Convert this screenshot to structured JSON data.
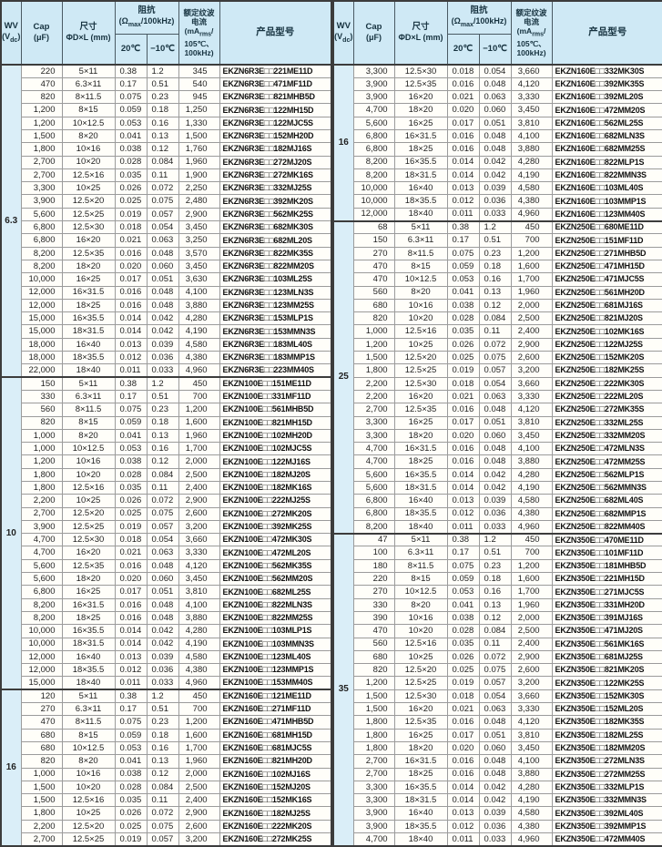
{
  "header": {
    "wv_title": "WV",
    "wv_unit_pre": "(V",
    "wv_unit_sub": "dc",
    "wv_unit_post": ")",
    "cap_title": "Cap",
    "cap_unit": "(μF)",
    "size_title": "尺寸",
    "size_unit": "ΦD×L (mm)",
    "impedance_title": "阻抗",
    "impedance_unit_pre": "(Ω",
    "impedance_unit_sub": "max",
    "impedance_unit_post": "/100kHz)",
    "temp_20": "20℃",
    "temp_minus10": "−10℃",
    "ripple_line1": "额定纹波",
    "ripple_line2": "电流",
    "ripple_line3_pre": "(mA",
    "ripple_line3_sub": "rms",
    "ripple_line3_post": "/",
    "ripple_line4": "105℃、",
    "ripple_line5": "100kHz)",
    "model_title": "产品型号"
  },
  "left_sections": [
    {
      "wv": "6.3",
      "rows": [
        [
          "220",
          "5×11",
          "0.38",
          "1.2",
          "345",
          "EKZN6R3E□□221ME11D"
        ],
        [
          "470",
          "6.3×11",
          "0.17",
          "0.51",
          "540",
          "EKZN6R3E□□471MF11D"
        ],
        [
          "820",
          "8×11.5",
          "0.075",
          "0.23",
          "945",
          "EKZN6R3E□□821MHB5D"
        ],
        [
          "1,200",
          "8×15",
          "0.059",
          "0.18",
          "1,250",
          "EKZN6R3E□□122MH15D"
        ],
        [
          "1,200",
          "10×12.5",
          "0.053",
          "0.16",
          "1,330",
          "EKZN6R3E□□122MJC5S"
        ],
        [
          "1,500",
          "8×20",
          "0.041",
          "0.13",
          "1,500",
          "EKZN6R3E□□152MH20D"
        ],
        [
          "1,800",
          "10×16",
          "0.038",
          "0.12",
          "1,760",
          "EKZN6R3E□□182MJ16S"
        ],
        [
          "2,700",
          "10×20",
          "0.028",
          "0.084",
          "1,960",
          "EKZN6R3E□□272MJ20S"
        ],
        [
          "2,700",
          "12.5×16",
          "0.035",
          "0.11",
          "1,900",
          "EKZN6R3E□□272MK16S"
        ],
        [
          "3,300",
          "10×25",
          "0.026",
          "0.072",
          "2,250",
          "EKZN6R3E□□332MJ25S"
        ],
        [
          "3,900",
          "12.5×20",
          "0.025",
          "0.075",
          "2,480",
          "EKZN6R3E□□392MK20S"
        ],
        [
          "5,600",
          "12.5×25",
          "0.019",
          "0.057",
          "2,900",
          "EKZN6R3E□□562MK25S"
        ],
        [
          "6,800",
          "12.5×30",
          "0.018",
          "0.054",
          "3,450",
          "EKZN6R3E□□682MK30S"
        ],
        [
          "6,800",
          "16×20",
          "0.021",
          "0.063",
          "3,250",
          "EKZN6R3E□□682ML20S"
        ],
        [
          "8,200",
          "12.5×35",
          "0.016",
          "0.048",
          "3,570",
          "EKZN6R3E□□822MK35S"
        ],
        [
          "8,200",
          "18×20",
          "0.020",
          "0.060",
          "3,450",
          "EKZN6R3E□□822MM20S"
        ],
        [
          "10,000",
          "16×25",
          "0.017",
          "0.051",
          "3,630",
          "EKZN6R3E□□103ML25S"
        ],
        [
          "12,000",
          "16×31.5",
          "0.016",
          "0.048",
          "4,100",
          "EKZN6R3E□□123MLN3S"
        ],
        [
          "12,000",
          "18×25",
          "0.016",
          "0.048",
          "3,880",
          "EKZN6R3E□□123MM25S"
        ],
        [
          "15,000",
          "16×35.5",
          "0.014",
          "0.042",
          "4,280",
          "EKZN6R3E□□153MLP1S"
        ],
        [
          "15,000",
          "18×31.5",
          "0.014",
          "0.042",
          "4,190",
          "EKZN6R3E□□153MMN3S"
        ],
        [
          "18,000",
          "16×40",
          "0.013",
          "0.039",
          "4,580",
          "EKZN6R3E□□183ML40S"
        ],
        [
          "18,000",
          "18×35.5",
          "0.012",
          "0.036",
          "4,380",
          "EKZN6R3E□□183MMP1S"
        ],
        [
          "22,000",
          "18×40",
          "0.011",
          "0.033",
          "4,960",
          "EKZN6R3E□□223MM40S"
        ]
      ]
    },
    {
      "wv": "10",
      "rows": [
        [
          "150",
          "5×11",
          "0.38",
          "1.2",
          "450",
          "EKZN100E□□151ME11D"
        ],
        [
          "330",
          "6.3×11",
          "0.17",
          "0.51",
          "700",
          "EKZN100E□□331MF11D"
        ],
        [
          "560",
          "8×11.5",
          "0.075",
          "0.23",
          "1,200",
          "EKZN100E□□561MHB5D"
        ],
        [
          "820",
          "8×15",
          "0.059",
          "0.18",
          "1,600",
          "EKZN100E□□821MH15D"
        ],
        [
          "1,000",
          "8×20",
          "0.041",
          "0.13",
          "1,960",
          "EKZN100E□□102MH20D"
        ],
        [
          "1,000",
          "10×12.5",
          "0.053",
          "0.16",
          "1,700",
          "EKZN100E□□102MJC5S"
        ],
        [
          "1,200",
          "10×16",
          "0.038",
          "0.12",
          "2,000",
          "EKZN100E□□122MJ16S"
        ],
        [
          "1,800",
          "10×20",
          "0.028",
          "0.084",
          "2,500",
          "EKZN100E□□182MJ20S"
        ],
        [
          "1,800",
          "12.5×16",
          "0.035",
          "0.11",
          "2,400",
          "EKZN100E□□182MK16S"
        ],
        [
          "2,200",
          "10×25",
          "0.026",
          "0.072",
          "2,900",
          "EKZN100E□□222MJ25S"
        ],
        [
          "2,700",
          "12.5×20",
          "0.025",
          "0.075",
          "2,600",
          "EKZN100E□□272MK20S"
        ],
        [
          "3,900",
          "12.5×25",
          "0.019",
          "0.057",
          "3,200",
          "EKZN100E□□392MK25S"
        ],
        [
          "4,700",
          "12.5×30",
          "0.018",
          "0.054",
          "3,660",
          "EKZN100E□□472MK30S"
        ],
        [
          "4,700",
          "16×20",
          "0.021",
          "0.063",
          "3,330",
          "EKZN100E□□472ML20S"
        ],
        [
          "5,600",
          "12.5×35",
          "0.016",
          "0.048",
          "4,120",
          "EKZN100E□□562MK35S"
        ],
        [
          "5,600",
          "18×20",
          "0.020",
          "0.060",
          "3,450",
          "EKZN100E□□562MM20S"
        ],
        [
          "6,800",
          "16×25",
          "0.017",
          "0.051",
          "3,810",
          "EKZN100E□□682ML25S"
        ],
        [
          "8,200",
          "16×31.5",
          "0.016",
          "0.048",
          "4,100",
          "EKZN100E□□822MLN3S"
        ],
        [
          "8,200",
          "18×25",
          "0.016",
          "0.048",
          "3,880",
          "EKZN100E□□822MM25S"
        ],
        [
          "10,000",
          "16×35.5",
          "0.014",
          "0.042",
          "4,280",
          "EKZN100E□□103MLP1S"
        ],
        [
          "10,000",
          "18×31.5",
          "0.014",
          "0.042",
          "4,190",
          "EKZN100E□□103MMN3S"
        ],
        [
          "12,000",
          "16×40",
          "0.013",
          "0.039",
          "4,580",
          "EKZN100E□□123ML40S"
        ],
        [
          "12,000",
          "18×35.5",
          "0.012",
          "0.036",
          "4,380",
          "EKZN100E□□123MMP1S"
        ],
        [
          "15,000",
          "18×40",
          "0.011",
          "0.033",
          "4,960",
          "EKZN100E□□153MM40S"
        ]
      ]
    },
    {
      "wv": "16",
      "rows": [
        [
          "120",
          "5×11",
          "0.38",
          "1.2",
          "450",
          "EKZN160E□□121ME11D"
        ],
        [
          "270",
          "6.3×11",
          "0.17",
          "0.51",
          "700",
          "EKZN160E□□271MF11D"
        ],
        [
          "470",
          "8×11.5",
          "0.075",
          "0.23",
          "1,200",
          "EKZN160E□□471MHB5D"
        ],
        [
          "680",
          "8×15",
          "0.059",
          "0.18",
          "1,600",
          "EKZN160E□□681MH15D"
        ],
        [
          "680",
          "10×12.5",
          "0.053",
          "0.16",
          "1,700",
          "EKZN160E□□681MJC5S"
        ],
        [
          "820",
          "8×20",
          "0.041",
          "0.13",
          "1,960",
          "EKZN160E□□821MH20D"
        ],
        [
          "1,000",
          "10×16",
          "0.038",
          "0.12",
          "2,000",
          "EKZN160E□□102MJ16S"
        ],
        [
          "1,500",
          "10×20",
          "0.028",
          "0.084",
          "2,500",
          "EKZN160E□□152MJ20S"
        ],
        [
          "1,500",
          "12.5×16",
          "0.035",
          "0.11",
          "2,400",
          "EKZN160E□□152MK16S"
        ],
        [
          "1,800",
          "10×25",
          "0.026",
          "0.072",
          "2,900",
          "EKZN160E□□182MJ25S"
        ],
        [
          "2,200",
          "12.5×20",
          "0.025",
          "0.075",
          "2,600",
          "EKZN160E□□222MK20S"
        ],
        [
          "2,700",
          "12.5×25",
          "0.019",
          "0.057",
          "3,200",
          "EKZN160E□□272MK25S"
        ]
      ]
    }
  ],
  "right_sections": [
    {
      "wv": "16",
      "rows": [
        [
          "3,300",
          "12.5×30",
          "0.018",
          "0.054",
          "3,660",
          "EKZN160E□□332MK30S"
        ],
        [
          "3,900",
          "12.5×35",
          "0.016",
          "0.048",
          "4,120",
          "EKZN160E□□392MK35S"
        ],
        [
          "3,900",
          "16×20",
          "0.021",
          "0.063",
          "3,330",
          "EKZN160E□□392ML20S"
        ],
        [
          "4,700",
          "18×20",
          "0.020",
          "0.060",
          "3,450",
          "EKZN160E□□472MM20S"
        ],
        [
          "5,600",
          "16×25",
          "0.017",
          "0.051",
          "3,810",
          "EKZN160E□□562ML25S"
        ],
        [
          "6,800",
          "16×31.5",
          "0.016",
          "0.048",
          "4,100",
          "EKZN160E□□682MLN3S"
        ],
        [
          "6,800",
          "18×25",
          "0.016",
          "0.048",
          "3,880",
          "EKZN160E□□682MM25S"
        ],
        [
          "8,200",
          "16×35.5",
          "0.014",
          "0.042",
          "4,280",
          "EKZN160E□□822MLP1S"
        ],
        [
          "8,200",
          "18×31.5",
          "0.014",
          "0.042",
          "4,190",
          "EKZN160E□□822MMN3S"
        ],
        [
          "10,000",
          "16×40",
          "0.013",
          "0.039",
          "4,580",
          "EKZN160E□□103ML40S"
        ],
        [
          "10,000",
          "18×35.5",
          "0.012",
          "0.036",
          "4,380",
          "EKZN160E□□103MMP1S"
        ],
        [
          "12,000",
          "18×40",
          "0.011",
          "0.033",
          "4,960",
          "EKZN160E□□123MM40S"
        ]
      ]
    },
    {
      "wv": "25",
      "rows": [
        [
          "68",
          "5×11",
          "0.38",
          "1.2",
          "450",
          "EKZN250E□□680ME11D"
        ],
        [
          "150",
          "6.3×11",
          "0.17",
          "0.51",
          "700",
          "EKZN250E□□151MF11D"
        ],
        [
          "270",
          "8×11.5",
          "0.075",
          "0.23",
          "1,200",
          "EKZN250E□□271MHB5D"
        ],
        [
          "470",
          "8×15",
          "0.059",
          "0.18",
          "1,600",
          "EKZN250E□□471MH15D"
        ],
        [
          "470",
          "10×12.5",
          "0.053",
          "0.16",
          "1,700",
          "EKZN250E□□471MJC5S"
        ],
        [
          "560",
          "8×20",
          "0.041",
          "0.13",
          "1,960",
          "EKZN250E□□561MH20D"
        ],
        [
          "680",
          "10×16",
          "0.038",
          "0.12",
          "2,000",
          "EKZN250E□□681MJ16S"
        ],
        [
          "820",
          "10×20",
          "0.028",
          "0.084",
          "2,500",
          "EKZN250E□□821MJ20S"
        ],
        [
          "1,000",
          "12.5×16",
          "0.035",
          "0.11",
          "2,400",
          "EKZN250E□□102MK16S"
        ],
        [
          "1,200",
          "10×25",
          "0.026",
          "0.072",
          "2,900",
          "EKZN250E□□122MJ25S"
        ],
        [
          "1,500",
          "12.5×20",
          "0.025",
          "0.075",
          "2,600",
          "EKZN250E□□152MK20S"
        ],
        [
          "1,800",
          "12.5×25",
          "0.019",
          "0.057",
          "3,200",
          "EKZN250E□□182MK25S"
        ],
        [
          "2,200",
          "12.5×30",
          "0.018",
          "0.054",
          "3,660",
          "EKZN250E□□222MK30S"
        ],
        [
          "2,200",
          "16×20",
          "0.021",
          "0.063",
          "3,330",
          "EKZN250E□□222ML20S"
        ],
        [
          "2,700",
          "12.5×35",
          "0.016",
          "0.048",
          "4,120",
          "EKZN250E□□272MK35S"
        ],
        [
          "3,300",
          "16×25",
          "0.017",
          "0.051",
          "3,810",
          "EKZN250E□□332ML25S"
        ],
        [
          "3,300",
          "18×20",
          "0.020",
          "0.060",
          "3,450",
          "EKZN250E□□332MM20S"
        ],
        [
          "4,700",
          "16×31.5",
          "0.016",
          "0.048",
          "4,100",
          "EKZN250E□□472MLN3S"
        ],
        [
          "4,700",
          "18×25",
          "0.016",
          "0.048",
          "3,880",
          "EKZN250E□□472MM25S"
        ],
        [
          "5,600",
          "16×35.5",
          "0.014",
          "0.042",
          "4,280",
          "EKZN250E□□562MLP1S"
        ],
        [
          "5,600",
          "18×31.5",
          "0.014",
          "0.042",
          "4,190",
          "EKZN250E□□562MMN3S"
        ],
        [
          "6,800",
          "16×40",
          "0.013",
          "0.039",
          "4,580",
          "EKZN250E□□682ML40S"
        ],
        [
          "6,800",
          "18×35.5",
          "0.012",
          "0.036",
          "4,380",
          "EKZN250E□□682MMP1S"
        ],
        [
          "8,200",
          "18×40",
          "0.011",
          "0.033",
          "4,960",
          "EKZN250E□□822MM40S"
        ]
      ]
    },
    {
      "wv": "35",
      "rows": [
        [
          "47",
          "5×11",
          "0.38",
          "1.2",
          "450",
          "EKZN350E□□470ME11D"
        ],
        [
          "100",
          "6.3×11",
          "0.17",
          "0.51",
          "700",
          "EKZN350E□□101MF11D"
        ],
        [
          "180",
          "8×11.5",
          "0.075",
          "0.23",
          "1,200",
          "EKZN350E□□181MHB5D"
        ],
        [
          "220",
          "8×15",
          "0.059",
          "0.18",
          "1,600",
          "EKZN350E□□221MH15D"
        ],
        [
          "270",
          "10×12.5",
          "0.053",
          "0.16",
          "1,700",
          "EKZN350E□□271MJC5S"
        ],
        [
          "330",
          "8×20",
          "0.041",
          "0.13",
          "1,960",
          "EKZN350E□□331MH20D"
        ],
        [
          "390",
          "10×16",
          "0.038",
          "0.12",
          "2,000",
          "EKZN350E□□391MJ16S"
        ],
        [
          "470",
          "10×20",
          "0.028",
          "0.084",
          "2,500",
          "EKZN350E□□471MJ20S"
        ],
        [
          "560",
          "12.5×16",
          "0.035",
          "0.11",
          "2,400",
          "EKZN350E□□561MK16S"
        ],
        [
          "680",
          "10×25",
          "0.026",
          "0.072",
          "2,900",
          "EKZN350E□□681MJ25S"
        ],
        [
          "820",
          "12.5×20",
          "0.025",
          "0.075",
          "2,600",
          "EKZN350E□□821MK20S"
        ],
        [
          "1,200",
          "12.5×25",
          "0.019",
          "0.057",
          "3,200",
          "EKZN350E□□122MK25S"
        ],
        [
          "1,500",
          "12.5×30",
          "0.018",
          "0.054",
          "3,660",
          "EKZN350E□□152MK30S"
        ],
        [
          "1,500",
          "16×20",
          "0.021",
          "0.063",
          "3,330",
          "EKZN350E□□152ML20S"
        ],
        [
          "1,800",
          "12.5×35",
          "0.016",
          "0.048",
          "4,120",
          "EKZN350E□□182MK35S"
        ],
        [
          "1,800",
          "16×25",
          "0.017",
          "0.051",
          "3,810",
          "EKZN350E□□182ML25S"
        ],
        [
          "1,800",
          "18×20",
          "0.020",
          "0.060",
          "3,450",
          "EKZN350E□□182MM20S"
        ],
        [
          "2,700",
          "16×31.5",
          "0.016",
          "0.048",
          "4,100",
          "EKZN350E□□272MLN3S"
        ],
        [
          "2,700",
          "18×25",
          "0.016",
          "0.048",
          "3,880",
          "EKZN350E□□272MM25S"
        ],
        [
          "3,300",
          "16×35.5",
          "0.014",
          "0.042",
          "4,280",
          "EKZN350E□□332MLP1S"
        ],
        [
          "3,300",
          "18×31.5",
          "0.014",
          "0.042",
          "4,190",
          "EKZN350E□□332MMN3S"
        ],
        [
          "3,900",
          "16×40",
          "0.013",
          "0.039",
          "4,580",
          "EKZN350E□□392ML40S"
        ],
        [
          "3,900",
          "18×35.5",
          "0.012",
          "0.036",
          "4,380",
          "EKZN350E□□392MMP1S"
        ],
        [
          "4,700",
          "18×40",
          "0.011",
          "0.033",
          "4,960",
          "EKZN350E□□472MM40S"
        ]
      ]
    }
  ],
  "colors": {
    "header_bg": "#cfe9f5",
    "wv_column_bg": "#daeef8",
    "row_bg": "#fffef9",
    "outer_border": "#3c3c3c",
    "inner_border": "#9b9b9b",
    "text": "#1f1f1f"
  }
}
